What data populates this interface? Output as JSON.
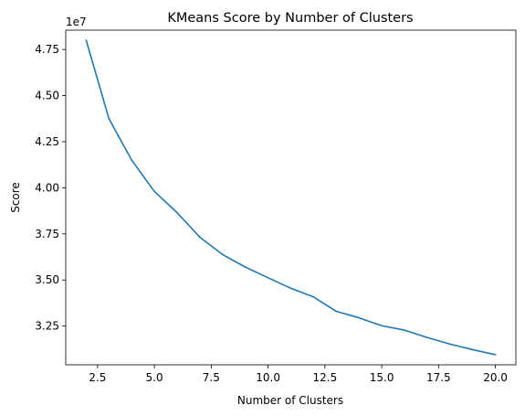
{
  "chart_data": {
    "type": "line",
    "title": "KMeans Score by Number of Clusters",
    "xlabel": "Number of Clusters",
    "ylabel": "Score",
    "y_offset_text": "1e7",
    "xlim": [
      1.1,
      20.9
    ],
    "ylim": [
      30.4,
      48.55
    ],
    "x_ticks": [
      2.5,
      5.0,
      7.5,
      10.0,
      12.5,
      15.0,
      17.5,
      20.0
    ],
    "x_tick_labels": [
      "2.5",
      "5.0",
      "7.5",
      "10.0",
      "12.5",
      "15.0",
      "17.5",
      "20.0"
    ],
    "y_ticks": [
      32.5,
      35.0,
      37.5,
      40.0,
      42.5,
      45.0,
      47.5
    ],
    "y_tick_labels": [
      "3.25",
      "3.50",
      "3.75",
      "4.00",
      "4.25",
      "4.50",
      "4.75"
    ],
    "grid": false,
    "legend": "none",
    "series": [
      {
        "color": "#1f77b4",
        "x": [
          2,
          3,
          4,
          5,
          6,
          7,
          8,
          9,
          10,
          11,
          12,
          13,
          14,
          15,
          16,
          17,
          18,
          19,
          20
        ],
        "y": [
          48.0,
          43.75,
          41.5,
          39.8,
          38.65,
          37.32,
          36.38,
          35.7,
          35.12,
          34.55,
          34.08,
          33.3,
          32.95,
          32.52,
          32.28,
          31.88,
          31.52,
          31.22,
          30.95
        ]
      }
    ]
  }
}
